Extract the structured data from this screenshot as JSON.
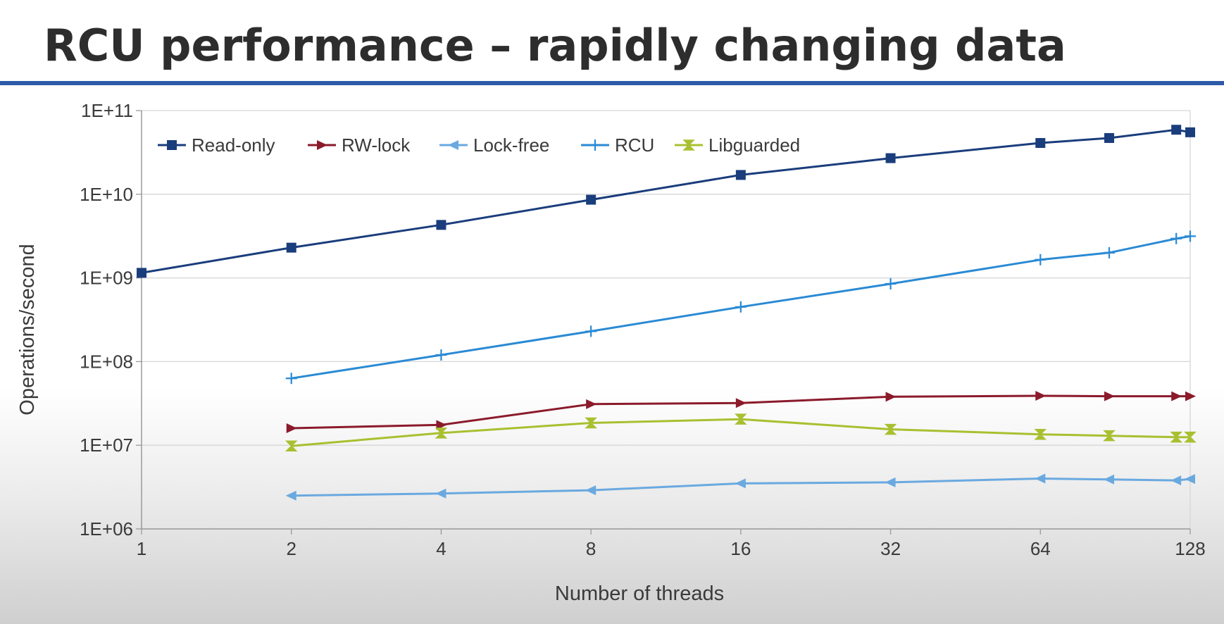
{
  "title": "RCU performance – rapidly changing data",
  "chart_data": {
    "type": "line",
    "xscale": "log2",
    "yscale": "log10",
    "xlabel": "Number of threads",
    "ylabel": "Operations/second",
    "xlim": [
      1,
      128
    ],
    "ylim": [
      1000000,
      100000000000
    ],
    "x_ticks": [
      1,
      2,
      4,
      8,
      16,
      32,
      64,
      128
    ],
    "x_tick_labels": [
      "1",
      "2",
      "4",
      "8",
      "16",
      "32",
      "64",
      "128"
    ],
    "y_ticks": [
      1000000,
      10000000,
      100000000,
      1000000000,
      10000000000,
      100000000000
    ],
    "y_tick_labels": [
      "1E+06",
      "1E+07",
      "1E+08",
      "1E+09",
      "1E+10",
      "1E+11"
    ],
    "grid": "horizontal",
    "legend_position": "top-left",
    "series": [
      {
        "name": "Read-only",
        "color": "#1a3d7c",
        "marker": "square",
        "x": [
          1,
          2,
          4,
          8,
          16,
          32,
          64,
          88,
          120,
          128
        ],
        "y": [
          1150000000,
          2300000000,
          4300000000,
          8600000000,
          17000000000,
          27000000000,
          41000000000,
          47000000000,
          59000000000,
          55000000000
        ]
      },
      {
        "name": "RW-lock",
        "color": "#8b1a2b",
        "marker": "triangle-right",
        "x": [
          2,
          4,
          8,
          16,
          32,
          64,
          88,
          120,
          128
        ],
        "y": [
          16000000,
          17500000,
          31000000,
          32000000,
          38000000,
          39000000,
          38500000,
          38500000,
          38500000
        ]
      },
      {
        "name": "Lock-free",
        "color": "#6aa9e0",
        "marker": "triangle-left",
        "x": [
          2,
          4,
          8,
          16,
          32,
          64,
          88,
          120,
          128
        ],
        "y": [
          2500000,
          2650000,
          2900000,
          3500000,
          3600000,
          4000000,
          3900000,
          3800000,
          3950000
        ]
      },
      {
        "name": "RCU",
        "color": "#2a8ad4",
        "marker": "plus",
        "x": [
          2,
          4,
          8,
          16,
          32,
          64,
          88,
          120,
          128
        ],
        "y": [
          63000000,
          120000000,
          230000000,
          450000000,
          850000000,
          1650000000,
          2000000000,
          2950000000,
          3150000000
        ]
      },
      {
        "name": "Libguarded",
        "color": "#a8c030",
        "marker": "hourglass",
        "x": [
          2,
          4,
          8,
          16,
          32,
          64,
          88,
          120,
          128
        ],
        "y": [
          9800000,
          14000000,
          18500000,
          20500000,
          15500000,
          13500000,
          13000000,
          12500000,
          12500000
        ]
      }
    ]
  }
}
